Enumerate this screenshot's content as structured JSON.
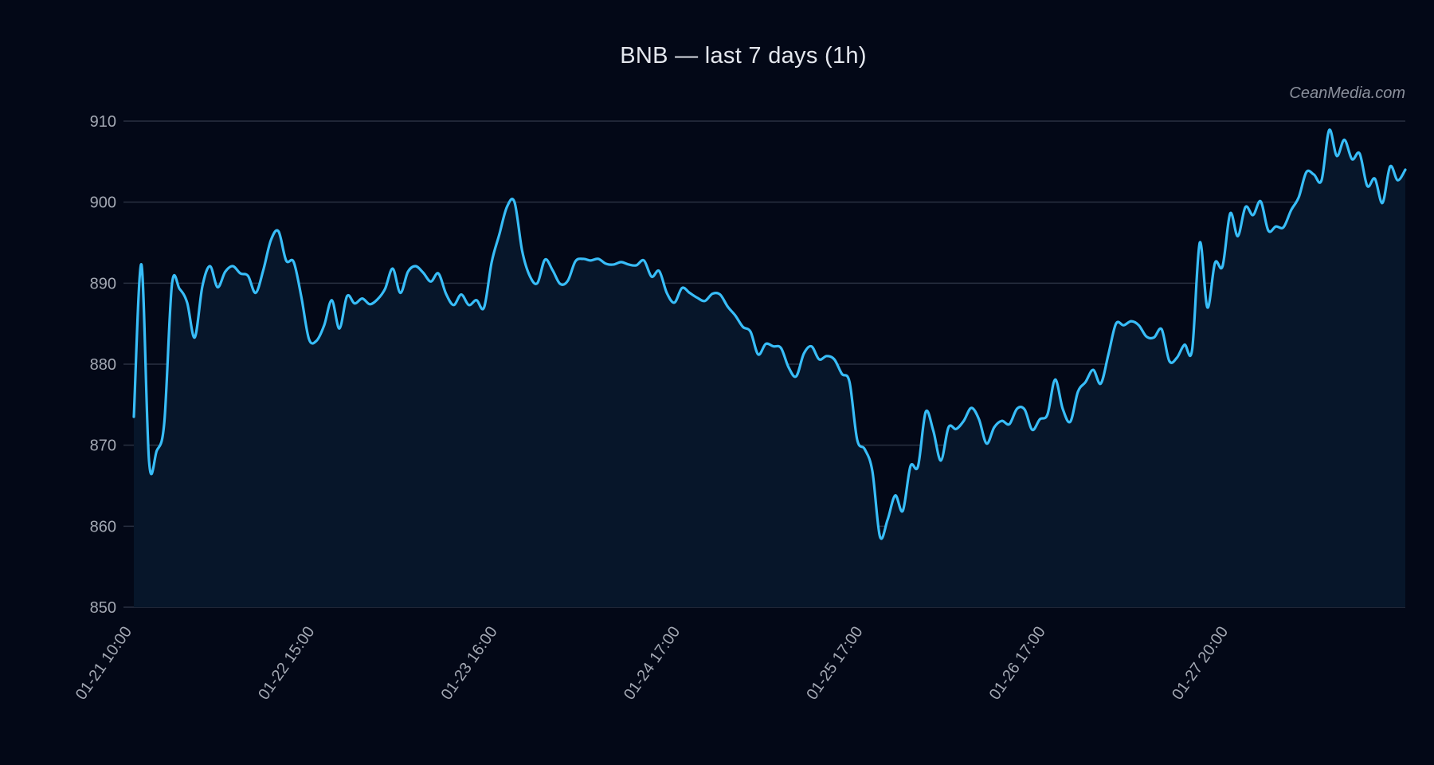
{
  "header": {
    "title": "BNB — last 7 days (1h)",
    "watermark": "CeanMedia.com"
  },
  "colors": {
    "background": "#030817",
    "line": "#38bdf8",
    "area_fill": "#07162a",
    "grid": "#2a3142",
    "tick_text": "#a3a8b3"
  },
  "chart_data": {
    "type": "area",
    "title": "BNB — last 7 days (1h)",
    "xlabel": "",
    "ylabel": "",
    "ylim": [
      850,
      910
    ],
    "yticks": [
      850,
      860,
      870,
      880,
      890,
      900,
      910
    ],
    "grid": true,
    "legend": "none",
    "xtick_labels": [
      "01-21 10:00",
      "01-22 15:00",
      "01-23 16:00",
      "01-24 17:00",
      "01-25 17:00",
      "01-26 17:00",
      "01-27 20:00"
    ],
    "xtick_indices": [
      0,
      24,
      48,
      72,
      96,
      120,
      144
    ],
    "series": [
      {
        "name": "BNB",
        "values": [
          873.5,
          892.3,
          868.0,
          869.3,
          872.8,
          889.8,
          889.3,
          887.6,
          883.3,
          889.6,
          892.1,
          889.5,
          891.4,
          892.1,
          891.2,
          890.9,
          888.8,
          891.6,
          895.3,
          896.4,
          892.8,
          892.6,
          888.3,
          883.1,
          882.9,
          884.8,
          887.9,
          884.4,
          888.4,
          887.5,
          888.1,
          887.4,
          888.0,
          889.3,
          891.8,
          888.8,
          891.4,
          892.1,
          891.3,
          890.2,
          891.2,
          888.7,
          887.3,
          888.6,
          887.3,
          887.9,
          887.0,
          892.6,
          896.0,
          899.4,
          900.0,
          894.0,
          890.9,
          890.0,
          892.9,
          891.6,
          889.9,
          890.3,
          892.7,
          893.0,
          892.8,
          893.0,
          892.4,
          892.3,
          892.6,
          892.3,
          892.2,
          892.8,
          890.8,
          891.5,
          888.8,
          887.6,
          889.4,
          888.8,
          888.2,
          887.8,
          888.7,
          888.6,
          887.1,
          886.0,
          884.6,
          884.0,
          881.2,
          882.5,
          882.2,
          882.0,
          879.6,
          878.5,
          881.3,
          882.2,
          880.6,
          881.0,
          880.6,
          878.8,
          877.8,
          870.7,
          869.5,
          866.8,
          858.7,
          860.8,
          863.8,
          861.9,
          867.4,
          867.4,
          874.1,
          871.8,
          868.1,
          872.2,
          872.0,
          873.0,
          874.6,
          873.2,
          870.2,
          872.2,
          873.0,
          872.6,
          874.5,
          874.4,
          871.9,
          873.2,
          873.8,
          878.1,
          874.5,
          872.9,
          876.6,
          877.8,
          879.3,
          877.6,
          881.2,
          885.0,
          884.8,
          885.3,
          884.8,
          883.4,
          883.3,
          884.3,
          880.4,
          880.8,
          882.4,
          881.8,
          895.0,
          887.0,
          892.5,
          892.1,
          898.6,
          895.8,
          899.4,
          898.4,
          900.1,
          896.5,
          897.0,
          896.9,
          899.0,
          900.6,
          903.7,
          903.4,
          902.7,
          908.9,
          905.7,
          907.7,
          905.3,
          906.0,
          902.0,
          902.9,
          899.9,
          904.4,
          902.7,
          904.0
        ]
      }
    ]
  }
}
